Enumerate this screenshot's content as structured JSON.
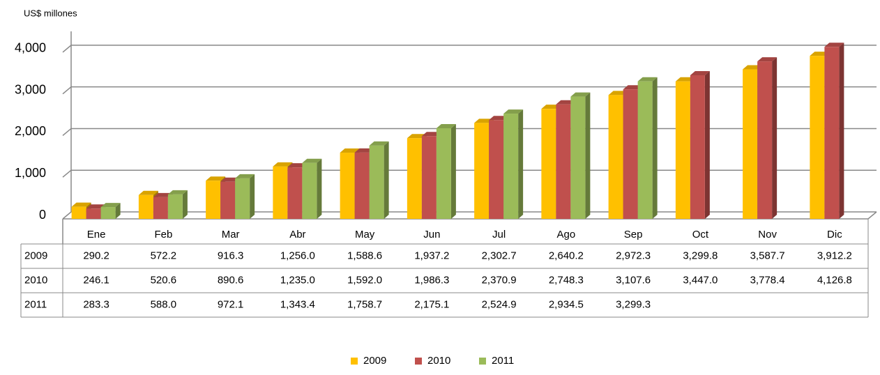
{
  "chart_data": {
    "type": "bar3d",
    "y_axis_label": "US$ millones",
    "categories": [
      "Ene",
      "Feb",
      "Mar",
      "Abr",
      "May",
      "Jun",
      "Jul",
      "Ago",
      "Sep",
      "Oct",
      "Nov",
      "Dic"
    ],
    "series": [
      {
        "name": "2009",
        "color": "#FFC000",
        "values": [
          290.2,
          572.2,
          916.3,
          1256.0,
          1588.6,
          1937.2,
          2302.7,
          2640.2,
          2972.3,
          3299.8,
          3587.7,
          3912.2
        ],
        "value_labels": [
          "290.2",
          "572.2",
          "916.3",
          "1,256.0",
          "1,588.6",
          "1,937.2",
          "2,302.7",
          "2,640.2",
          "2,972.3",
          "3,299.8",
          "3,587.7",
          "3,912.2"
        ]
      },
      {
        "name": "2010",
        "color": "#C0504D",
        "values": [
          246.1,
          520.6,
          890.6,
          1235.0,
          1592.0,
          1986.3,
          2370.9,
          2748.3,
          3107.6,
          3447.0,
          3778.4,
          4126.8
        ],
        "value_labels": [
          "246.1",
          "520.6",
          "890.6",
          "1,235.0",
          "1,592.0",
          "1,986.3",
          "2,370.9",
          "2,748.3",
          "3,107.6",
          "3,447.0",
          "3,778.4",
          "4,126.8"
        ]
      },
      {
        "name": "2011",
        "color": "#9BBB59",
        "values": [
          283.3,
          588.0,
          972.1,
          1343.4,
          1758.7,
          2175.1,
          2524.9,
          2934.5,
          3299.3,
          null,
          null,
          null
        ],
        "value_labels": [
          "283.3",
          "588.0",
          "972.1",
          "1,343.4",
          "1,758.7",
          "2,175.1",
          "2,524.9",
          "2,934.5",
          "3,299.3",
          null,
          null,
          null
        ]
      }
    ],
    "ylim": [
      0,
      4500
    ],
    "yticks": [
      0,
      {
        "value": 1000,
        "label": "1,000"
      },
      {
        "value": 2000,
        "label": "2,000"
      },
      {
        "value": 3000,
        "label": "3,000"
      },
      {
        "value": 4000,
        "label": "4,000"
      }
    ],
    "grid": true,
    "data_table": true,
    "legend": "bottom"
  }
}
